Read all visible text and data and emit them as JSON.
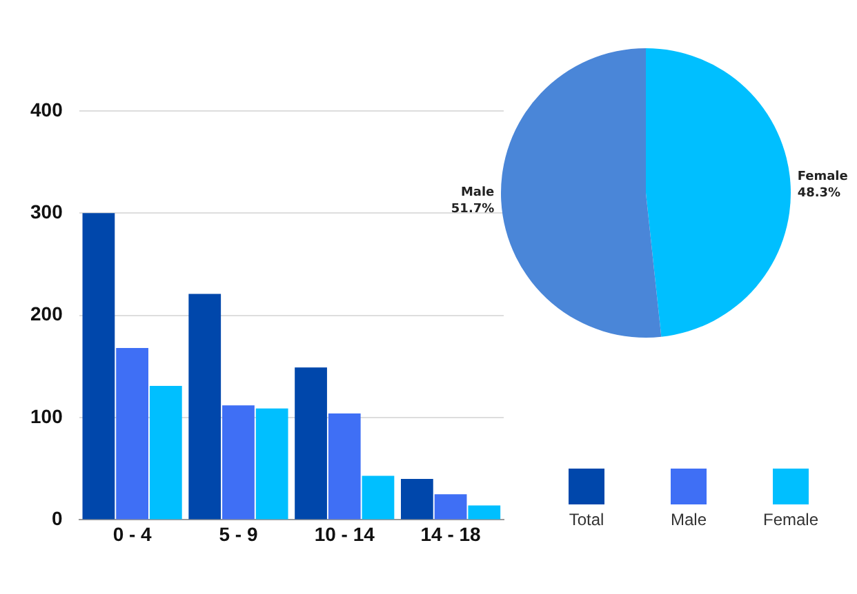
{
  "chart_data": [
    {
      "type": "bar",
      "categories": [
        "0 - 4",
        "5 - 9",
        "10 - 14",
        "14 - 18"
      ],
      "series": [
        {
          "name": "Total",
          "color": "#0047ab",
          "values": [
            300,
            221,
            149,
            40
          ]
        },
        {
          "name": "Male",
          "color": "#3f6ff5",
          "values": [
            168,
            112,
            104,
            25
          ]
        },
        {
          "name": "Female",
          "color": "#00bfff",
          "values": [
            131,
            109,
            43,
            14
          ]
        }
      ],
      "ylim": [
        0,
        400
      ],
      "yticks": [
        0,
        100,
        200,
        300,
        400
      ],
      "grid": "y",
      "legend": "bottom right"
    },
    {
      "type": "pie",
      "categories": [
        "Female",
        "Male"
      ],
      "values": [
        48.3,
        51.7
      ],
      "colors": [
        "#00bfff",
        "#4a86d8"
      ],
      "value_labels": [
        "48.3%",
        "51.7%"
      ],
      "legend": false
    }
  ]
}
